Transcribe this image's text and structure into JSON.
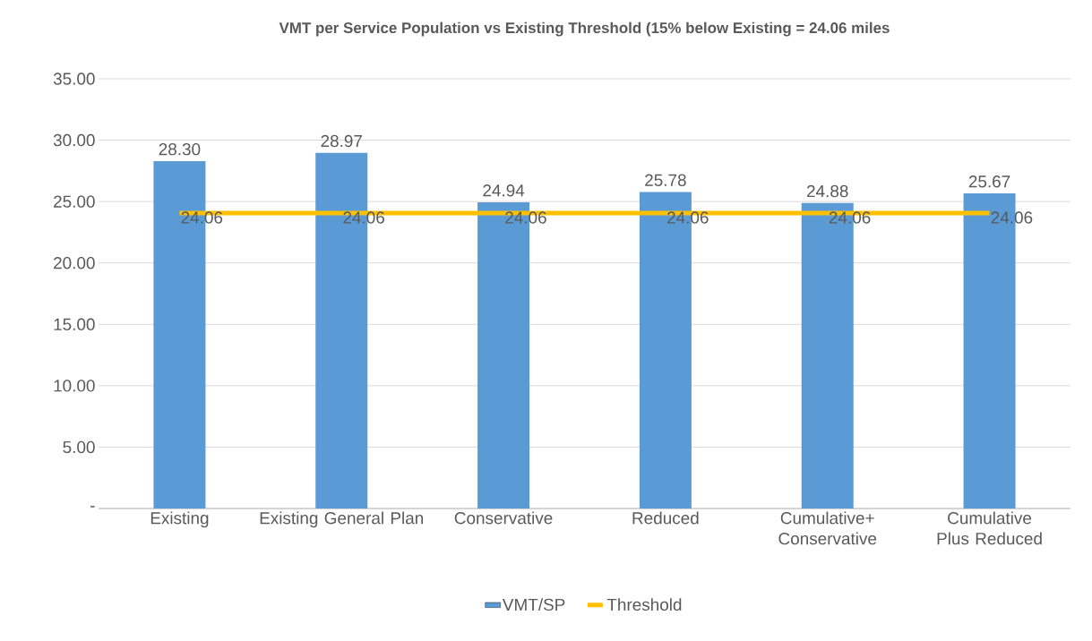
{
  "chart_data": {
    "type": "bar",
    "title": "VMT per Service Population vs Existing Threshold (15% below Existing = 24.06 miles",
    "categories": [
      "Existing",
      "Existing General Plan",
      "Conservative",
      "Reduced",
      "Cumulative+ Conservative",
      "Cumulative Plus Reduced"
    ],
    "series": [
      {
        "name": "VMT/SP",
        "color": "#5b9bd5",
        "values": [
          28.3,
          28.97,
          24.94,
          25.78,
          24.88,
          25.67
        ],
        "value_labels": [
          "28.30",
          "28.97",
          "24.94",
          "25.78",
          "24.88",
          "25.67"
        ]
      },
      {
        "name": "Threshold",
        "type": "line",
        "color": "#ffc000",
        "values": [
          24.06,
          24.06,
          24.06,
          24.06,
          24.06,
          24.06
        ],
        "value_labels": [
          "24.06",
          "24.06",
          "24.06",
          "24.06",
          "24.06",
          "24.06"
        ]
      }
    ],
    "ylim": [
      0,
      35
    ],
    "yticks": [
      {
        "value": 0,
        "label": "-"
      },
      {
        "value": 5,
        "label": "5.00"
      },
      {
        "value": 10,
        "label": "10.00"
      },
      {
        "value": 15,
        "label": "15.00"
      },
      {
        "value": 20,
        "label": "20.00"
      },
      {
        "value": 25,
        "label": "25.00"
      },
      {
        "value": 30,
        "label": "30.00"
      },
      {
        "value": 35,
        "label": "35.00"
      }
    ],
    "grid": "y",
    "legend": "bottom"
  }
}
